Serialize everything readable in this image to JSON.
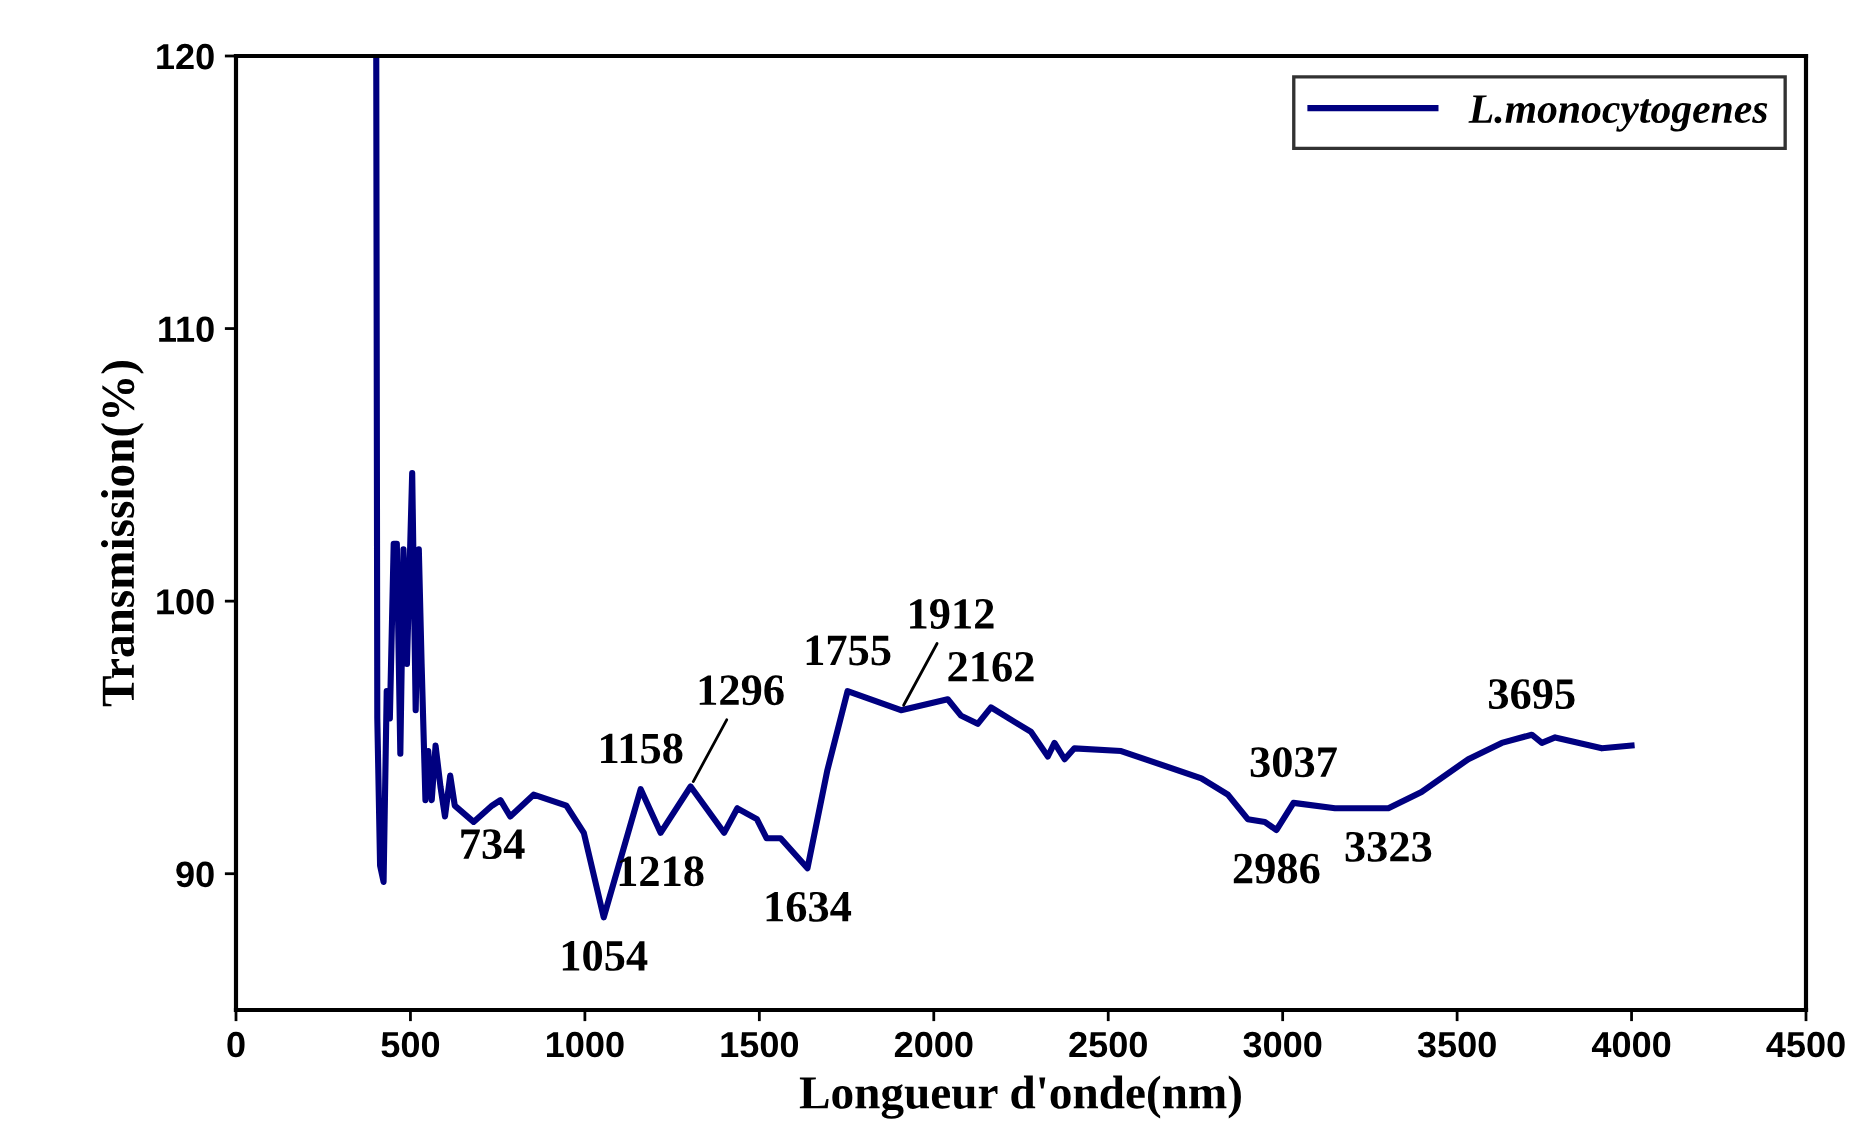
{
  "chart_data": {
    "type": "line",
    "xlabel": "Longueur d'onde(nm)",
    "ylabel": "Transmission(%)",
    "xlim": [
      0,
      4500
    ],
    "xticks": [
      0,
      500,
      1000,
      1500,
      2000,
      2500,
      3000,
      3500,
      4000,
      4500
    ],
    "ylim": [
      85,
      120
    ],
    "yticks": [
      90,
      100,
      110,
      120
    ],
    "grid": false,
    "legend": "top right",
    "series": [
      {
        "name": "L.monocytogenes",
        "color": "#000080",
        "x": [
          402,
          405,
          413,
          423,
          432,
          441,
          452,
          461,
          471,
          480,
          490,
          505,
          515,
          524,
          532,
          543,
          551,
          561,
          572,
          586,
          599,
          614,
          627,
          681,
          734,
          758,
          786,
          853,
          947,
          997,
          1054,
          1160,
          1217,
          1303,
          1399,
          1437,
          1493,
          1521,
          1561,
          1638,
          1695,
          1753,
          1906,
          2040,
          2078,
          2126,
          2164,
          2279,
          2327,
          2346,
          2375,
          2403,
          2537,
          2767,
          2843,
          2900,
          2949,
          2982,
          3031,
          3150,
          3303,
          3398,
          3532,
          3628,
          3714,
          3743,
          3781,
          3915,
          4000
        ],
        "values": [
          120,
          95.7,
          90.3,
          89.7,
          96.7,
          95.7,
          102.1,
          102.1,
          94.4,
          101.9,
          97.7,
          104.7,
          96.0,
          101.9,
          97.7,
          92.7,
          94.5,
          92.7,
          94.7,
          93.2,
          92.1,
          93.6,
          92.5,
          91.9,
          92.5,
          92.7,
          92.1,
          92.9,
          92.5,
          91.5,
          88.4,
          93.1,
          91.5,
          93.2,
          91.5,
          92.4,
          92.0,
          91.3,
          91.3,
          90.2,
          93.8,
          96.7,
          96.0,
          96.4,
          95.8,
          95.5,
          96.1,
          95.2,
          94.3,
          94.8,
          94.2,
          94.6,
          94.5,
          93.5,
          92.9,
          92.0,
          91.9,
          91.6,
          92.6,
          92.4,
          92.4,
          93.0,
          94.2,
          94.8,
          95.1,
          94.8,
          95.0,
          94.6,
          94.7
        ]
      }
    ],
    "annotations": [
      {
        "text": "734",
        "x": 734,
        "y": 92.5
      },
      {
        "text": "1054",
        "x": 1054,
        "y": 88.4
      },
      {
        "text": "1158",
        "x": 1160,
        "y": 93.1
      },
      {
        "text": "1218",
        "x": 1217,
        "y": 91.5
      },
      {
        "text": "1296",
        "x": 1303,
        "y": 93.2
      },
      {
        "text": "1634",
        "x": 1638,
        "y": 90.2
      },
      {
        "text": "1755",
        "x": 1753,
        "y": 96.7
      },
      {
        "text": "1912",
        "x": 1906,
        "y": 96.0
      },
      {
        "text": "2162",
        "x": 2164,
        "y": 96.1
      },
      {
        "text": "2986",
        "x": 2982,
        "y": 91.6
      },
      {
        "text": "3037",
        "x": 3031,
        "y": 92.6
      },
      {
        "text": "3323",
        "x": 3303,
        "y": 92.4
      },
      {
        "text": "3695",
        "x": 3714,
        "y": 95.1
      }
    ]
  }
}
